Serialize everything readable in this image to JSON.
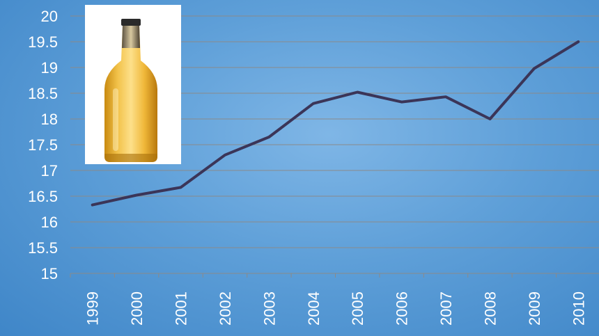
{
  "chart_data": {
    "type": "line",
    "categories": [
      "1999",
      "2000",
      "2001",
      "2002",
      "2003",
      "2004",
      "2005",
      "2006",
      "2007",
      "2008",
      "2009",
      "2010"
    ],
    "series": [
      {
        "values": [
          16.33,
          16.52,
          16.67,
          17.3,
          17.65,
          18.3,
          18.52,
          18.33,
          18.43,
          18.0,
          18.98,
          19.5
        ]
      }
    ],
    "title": "",
    "xlabel": "",
    "ylabel": "",
    "ylim": [
      15,
      20
    ],
    "yticks": [
      "15",
      "15.5",
      "16",
      "16.5",
      "17",
      "17.5",
      "18",
      "18.5",
      "19",
      "19.5",
      "20"
    ],
    "grid": "horizontal",
    "line_color": "#3b3558",
    "grid_color": "#8a8a8a"
  },
  "image": {
    "icon": "beer-bottle-icon"
  }
}
